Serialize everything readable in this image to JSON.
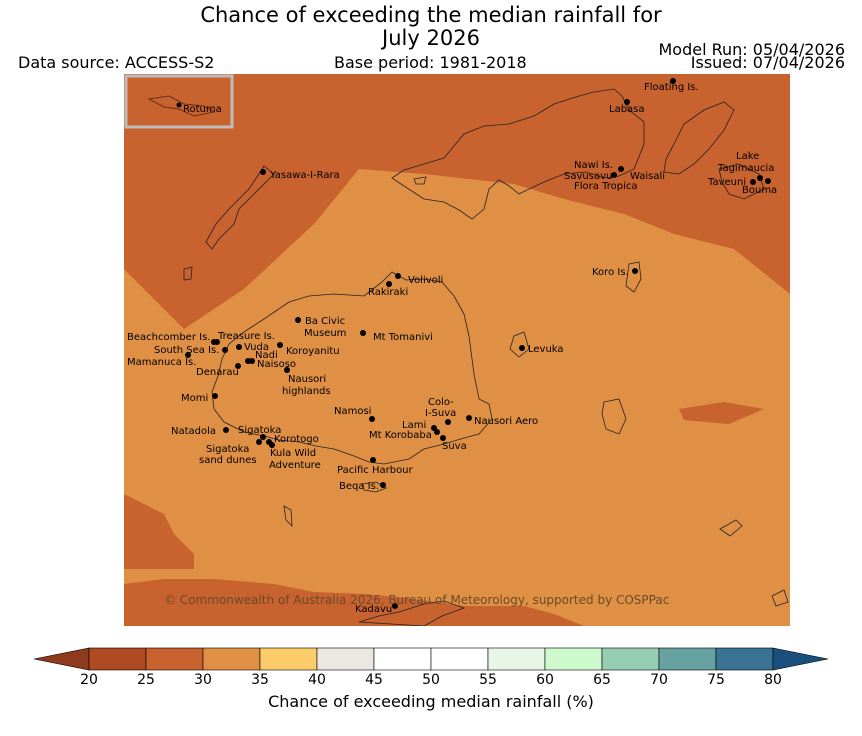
{
  "header": {
    "title_line1": "Chance of exceeding the median rainfall for",
    "title_line2": "July 2026",
    "data_source": "Data source: ACCESS-S2",
    "base_period": "Base period: 1981-2018",
    "model_run": "Model Run: 05/04/2026",
    "issued": "Issued: 07/04/2026"
  },
  "map": {
    "inset_label": "Rotuma",
    "copyright": "© Commonwealth of Australia 2026, Bureau of Meteorology, supported by COSPPac",
    "places": [
      {
        "name": "Floating Is."
      },
      {
        "name": "Labasa"
      },
      {
        "name": "Yasawa-I-Rara"
      },
      {
        "name": "Nawi Is."
      },
      {
        "name": "Savusavu"
      },
      {
        "name": "Waisali"
      },
      {
        "name": "Flora Tropica"
      },
      {
        "name": "Lake"
      },
      {
        "name": "Tagimaucia"
      },
      {
        "name": "Taveuni"
      },
      {
        "name": "Bouma"
      },
      {
        "name": "Koro Is."
      },
      {
        "name": "Volivoli"
      },
      {
        "name": "Rakiraki"
      },
      {
        "name": "Ba Civic"
      },
      {
        "name": "Museum"
      },
      {
        "name": "Mt Tomanivi"
      },
      {
        "name": "Beachcomber Is."
      },
      {
        "name": "Treasure Is."
      },
      {
        "name": "South Sea Is."
      },
      {
        "name": "Vuda"
      },
      {
        "name": "Koroyanitu"
      },
      {
        "name": "Nadi"
      },
      {
        "name": "Mamanuca Is."
      },
      {
        "name": "Naisoso"
      },
      {
        "name": "Denarau"
      },
      {
        "name": "Nausori"
      },
      {
        "name": "highlands"
      },
      {
        "name": "Levuka"
      },
      {
        "name": "Momi"
      },
      {
        "name": "Namosi"
      },
      {
        "name": "Colo-"
      },
      {
        "name": "I-Suva"
      },
      {
        "name": "Lami"
      },
      {
        "name": "Nausori Aero"
      },
      {
        "name": "Mt Korobaba"
      },
      {
        "name": "Suva"
      },
      {
        "name": "Natadola"
      },
      {
        "name": "Sigatoka"
      },
      {
        "name": "Korotogo"
      },
      {
        "name": "Sigatoka"
      },
      {
        "name": "sand dunes"
      },
      {
        "name": "Kula Wild"
      },
      {
        "name": "Adventure"
      },
      {
        "name": "Pacific Harbour"
      },
      {
        "name": "Beqa Is."
      },
      {
        "name": "Kadavu"
      }
    ]
  },
  "colorbar": {
    "label": "Chance of exceeding median rainfall (%)",
    "ticks": [
      "20",
      "25",
      "30",
      "35",
      "40",
      "45",
      "50",
      "55",
      "60",
      "65",
      "70",
      "75",
      "80"
    ],
    "colors": [
      "#b04a22",
      "#c8622f",
      "#df9044",
      "#fccb6a",
      "#ebe7e1",
      "#ffffff",
      "#ffffff",
      "#e8f6e8",
      "#cdf9cc",
      "#97cdb3",
      "#66a2a1",
      "#3a7293"
    ],
    "under_color": "#8e3a1c",
    "over_color": "#1a4f7d"
  },
  "legend_values": {
    "dark_band_color": "#c8622f",
    "light_band_color": "#df9044"
  }
}
